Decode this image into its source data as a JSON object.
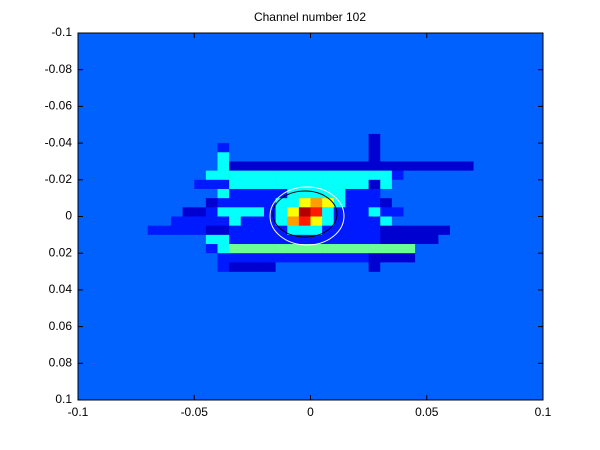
{
  "chart_data": {
    "type": "heatmap",
    "title": "Channel number 102",
    "xlim": [
      -0.1,
      0.1
    ],
    "ylim": [
      -0.1,
      0.1
    ],
    "y_reversed": true,
    "xticks": [
      -0.1,
      -0.05,
      0,
      0.05,
      0.1
    ],
    "yticks": [
      -0.1,
      -0.08,
      -0.06,
      -0.04,
      -0.02,
      0,
      0.02,
      0.04,
      0.06,
      0.08,
      0.1
    ],
    "colormap": "jet",
    "clim": [
      0,
      1
    ],
    "background_color": "#0061ff",
    "x": [
      -0.0675,
      -0.0625,
      -0.0575,
      -0.0525,
      -0.0475,
      -0.0425,
      -0.0375,
      -0.0325,
      -0.0275,
      -0.0225,
      -0.0175,
      -0.0125,
      -0.0075,
      -0.0025,
      0.0025,
      0.0075,
      0.0125,
      0.0175,
      0.0225,
      0.0275,
      0.0325,
      0.0375,
      0.0425,
      0.0475,
      0.0525,
      0.0575,
      0.0625,
      0.0675
    ],
    "y": [
      -0.0425,
      -0.0375,
      -0.0325,
      -0.0275,
      -0.0225,
      -0.0175,
      -0.0125,
      -0.0075,
      -0.0025,
      0.0025,
      0.0075,
      0.0125,
      0.0175,
      0.0225,
      0.0275
    ],
    "z": [
      [
        0.22,
        0.22,
        0.22,
        0.22,
        0.22,
        0.22,
        0.22,
        0.22,
        0.22,
        0.22,
        0.22,
        0.22,
        0.22,
        0.22,
        0.22,
        0.22,
        0.22,
        0.22,
        0.22,
        0.08,
        0.22,
        0.22,
        0.22,
        0.22,
        0.22,
        0.22,
        0.22,
        0.22
      ],
      [
        0.22,
        0.22,
        0.22,
        0.22,
        0.22,
        0.22,
        0.15,
        0.22,
        0.22,
        0.22,
        0.22,
        0.22,
        0.22,
        0.22,
        0.22,
        0.22,
        0.22,
        0.22,
        0.22,
        0.08,
        0.22,
        0.22,
        0.22,
        0.22,
        0.22,
        0.22,
        0.22,
        0.22
      ],
      [
        0.22,
        0.22,
        0.22,
        0.22,
        0.22,
        0.22,
        0.38,
        0.22,
        0.22,
        0.22,
        0.22,
        0.22,
        0.22,
        0.22,
        0.22,
        0.22,
        0.22,
        0.22,
        0.22,
        0.08,
        0.22,
        0.22,
        0.22,
        0.22,
        0.22,
        0.22,
        0.22,
        0.22
      ],
      [
        0.22,
        0.22,
        0.22,
        0.22,
        0.22,
        0.22,
        0.38,
        0.08,
        0.08,
        0.08,
        0.08,
        0.08,
        0.08,
        0.08,
        0.08,
        0.08,
        0.08,
        0.08,
        0.08,
        0.08,
        0.08,
        0.08,
        0.08,
        0.08,
        0.08,
        0.08,
        0.08,
        0.08
      ],
      [
        0.22,
        0.22,
        0.22,
        0.22,
        0.22,
        0.38,
        0.38,
        0.38,
        0.38,
        0.38,
        0.38,
        0.38,
        0.38,
        0.38,
        0.38,
        0.38,
        0.38,
        0.38,
        0.38,
        0.38,
        0.38,
        0.15,
        0.22,
        0.22,
        0.22,
        0.22,
        0.22,
        0.22
      ],
      [
        0.22,
        0.22,
        0.22,
        0.22,
        0.15,
        0.15,
        0.15,
        0.38,
        0.38,
        0.38,
        0.38,
        0.38,
        0.38,
        0.38,
        0.38,
        0.38,
        0.38,
        0.38,
        0.38,
        0.08,
        0.38,
        0.22,
        0.22,
        0.22,
        0.22,
        0.22,
        0.22,
        0.22
      ],
      [
        0.22,
        0.22,
        0.22,
        0.22,
        0.22,
        0.22,
        0.38,
        0.15,
        0.15,
        0.15,
        0.15,
        0.15,
        0.38,
        0.38,
        0.38,
        0.38,
        0.38,
        0.15,
        0.15,
        0.15,
        0.22,
        0.22,
        0.22,
        0.22,
        0.22,
        0.22,
        0.22,
        0.22
      ],
      [
        0.22,
        0.22,
        0.22,
        0.22,
        0.22,
        0.08,
        0.15,
        0.15,
        0.15,
        0.15,
        0.15,
        0.38,
        0.38,
        0.62,
        0.72,
        0.62,
        0.38,
        0.15,
        0.15,
        0.15,
        0.08,
        0.22,
        0.22,
        0.22,
        0.22,
        0.22,
        0.22,
        0.22
      ],
      [
        0.22,
        0.22,
        0.22,
        0.08,
        0.08,
        0.15,
        0.38,
        0.38,
        0.38,
        0.38,
        0.15,
        0.38,
        0.62,
        0.95,
        0.85,
        0.38,
        0.15,
        0.15,
        0.15,
        0.38,
        0.15,
        0.15,
        0.22,
        0.22,
        0.22,
        0.22,
        0.22,
        0.22
      ],
      [
        0.22,
        0.22,
        0.15,
        0.15,
        0.15,
        0.15,
        0.15,
        0.38,
        0.15,
        0.15,
        0.15,
        0.38,
        0.72,
        0.85,
        0.62,
        0.38,
        0.15,
        0.15,
        0.15,
        0.15,
        0.38,
        0.22,
        0.22,
        0.22,
        0.22,
        0.22,
        0.22,
        0.22
      ],
      [
        0.15,
        0.15,
        0.15,
        0.15,
        0.15,
        0.08,
        0.08,
        0.15,
        0.15,
        0.15,
        0.15,
        0.15,
        0.38,
        0.38,
        0.38,
        0.15,
        0.15,
        0.15,
        0.15,
        0.15,
        0.08,
        0.08,
        0.08,
        0.08,
        0.08,
        0.08,
        0.22,
        0.22
      ],
      [
        0.22,
        0.22,
        0.22,
        0.22,
        0.22,
        0.38,
        0.38,
        0.15,
        0.15,
        0.15,
        0.15,
        0.15,
        0.15,
        0.15,
        0.15,
        0.15,
        0.15,
        0.15,
        0.15,
        0.15,
        0.08,
        0.08,
        0.08,
        0.08,
        0.08,
        0.22,
        0.22,
        0.22
      ],
      [
        0.22,
        0.22,
        0.22,
        0.22,
        0.22,
        0.15,
        0.38,
        0.48,
        0.48,
        0.48,
        0.48,
        0.48,
        0.48,
        0.48,
        0.48,
        0.48,
        0.48,
        0.48,
        0.48,
        0.48,
        0.48,
        0.48,
        0.48,
        0.22,
        0.22,
        0.22,
        0.22,
        0.22
      ],
      [
        0.22,
        0.22,
        0.22,
        0.22,
        0.22,
        0.22,
        0.15,
        0.15,
        0.15,
        0.15,
        0.15,
        0.15,
        0.15,
        0.15,
        0.15,
        0.15,
        0.15,
        0.15,
        0.15,
        0.08,
        0.08,
        0.08,
        0.08,
        0.22,
        0.22,
        0.22,
        0.22,
        0.22
      ],
      [
        0.22,
        0.22,
        0.22,
        0.22,
        0.22,
        0.22,
        0.15,
        0.08,
        0.08,
        0.08,
        0.08,
        0.22,
        0.22,
        0.22,
        0.22,
        0.22,
        0.22,
        0.22,
        0.22,
        0.08,
        0.22,
        0.22,
        0.22,
        0.22,
        0.22,
        0.22,
        0.22,
        0.22
      ]
    ]
  }
}
